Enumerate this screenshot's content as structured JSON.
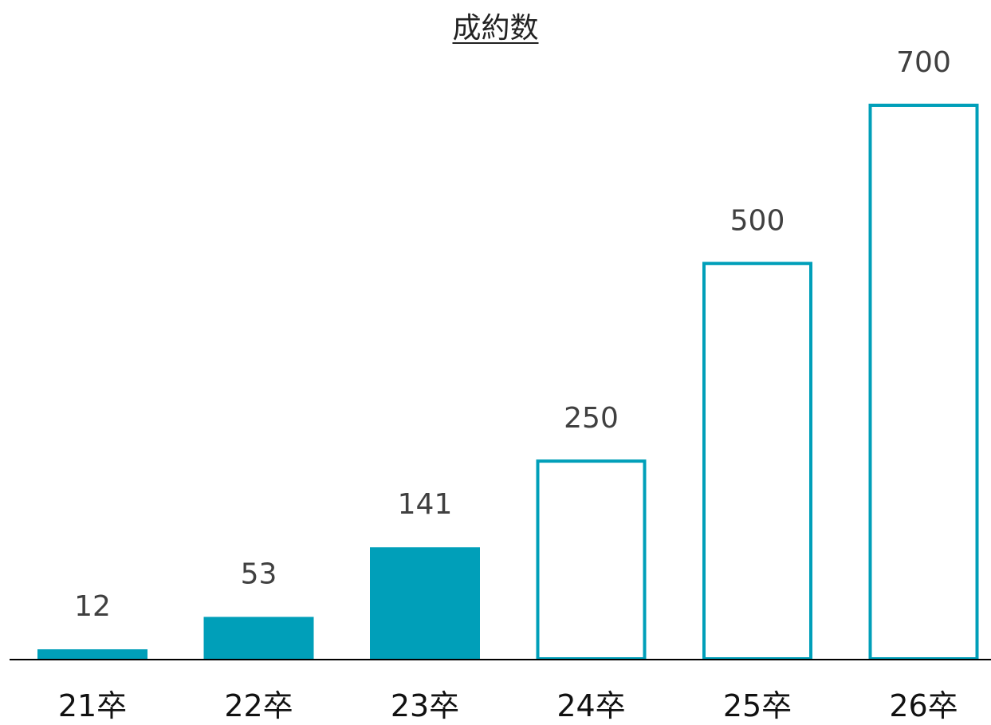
{
  "chart_data": {
    "type": "bar",
    "title": "成約数",
    "xlabel": "",
    "ylabel": "",
    "categories": [
      "21卒",
      "22卒",
      "23卒",
      "24卒",
      "25卒",
      "26卒"
    ],
    "values": [
      12,
      53,
      141,
      250,
      500,
      700
    ],
    "styles": [
      "filled",
      "filled",
      "filled",
      "outline",
      "outline",
      "outline"
    ],
    "ylim": [
      0,
      700
    ],
    "grid": false,
    "legend": "none",
    "colors": {
      "bar": "#009fb9",
      "axis": "#000000",
      "label": "#404040"
    }
  }
}
